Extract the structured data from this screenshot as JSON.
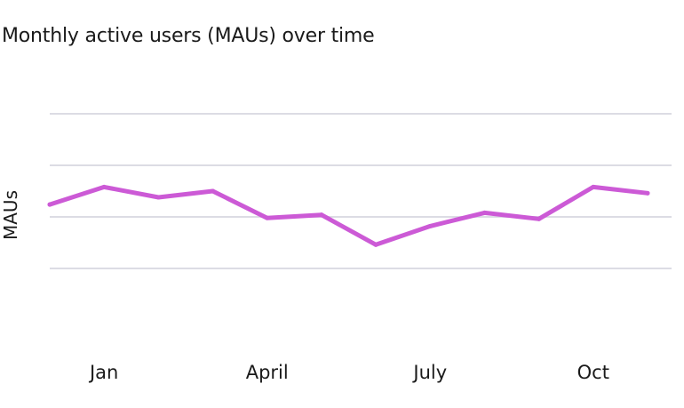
{
  "chart_data": {
    "type": "line",
    "title": "Monthly active users (MAUs) over time",
    "xlabel": "",
    "ylabel": "MAUs",
    "x_tick_labels": [
      {
        "label": "Jan",
        "index": 1
      },
      {
        "label": "April",
        "index": 4
      },
      {
        "label": "July",
        "index": 7
      },
      {
        "label": "Oct",
        "index": 10
      }
    ],
    "series": [
      {
        "color": "#cc5ad6",
        "values": [
          62,
          79,
          69,
          75,
          49,
          52,
          23,
          41,
          54,
          48,
          79,
          73
        ]
      }
    ],
    "ylim": [
      -50,
      150
    ],
    "gridlines": [
      0,
      50,
      100,
      150
    ],
    "grid": true,
    "legend": "none"
  }
}
